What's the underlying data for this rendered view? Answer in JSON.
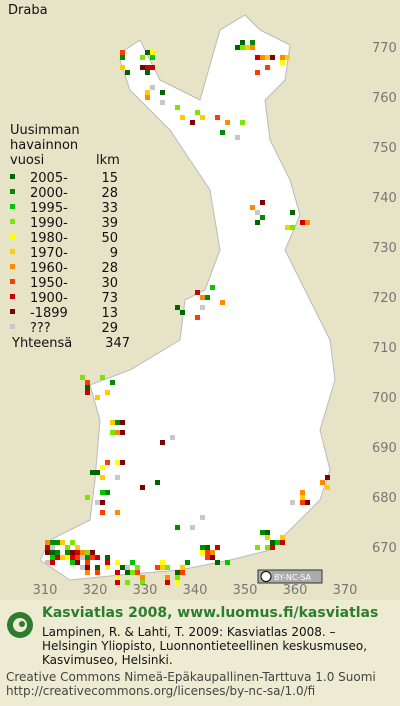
{
  "title": "Draba",
  "legend": {
    "heading": [
      "Uusimman",
      "havainnon",
      "vuosi"
    ],
    "count_heading": "lkm",
    "rows": [
      {
        "label": "2005-",
        "count": 15,
        "color": "#006400"
      },
      {
        "label": "2000-",
        "count": 28,
        "color": "#008c00"
      },
      {
        "label": "1995-",
        "count": 33,
        "color": "#00c800"
      },
      {
        "label": "1990-",
        "count": 39,
        "color": "#7ce600"
      },
      {
        "label": "1980-",
        "count": 50,
        "color": "#ffff00"
      },
      {
        "label": "1970-",
        "count": 9,
        "color": "#ffcc00"
      },
      {
        "label": "1960-",
        "count": 28,
        "color": "#ff8c00"
      },
      {
        "label": "1950-",
        "count": 30,
        "color": "#ff3c00"
      },
      {
        "label": "1900-",
        "count": 73,
        "color": "#cc0000"
      },
      {
        "label": "-1899",
        "count": 13,
        "color": "#800000"
      },
      {
        "label": "???",
        "count": 29,
        "color": "#c8c8c8"
      }
    ],
    "total_label": "Yhteensä",
    "total": 347
  },
  "axes": {
    "north": [
      770,
      760,
      750,
      740,
      730,
      720,
      710,
      700,
      690,
      680,
      670
    ],
    "east": [
      310,
      320,
      330,
      340,
      350,
      360,
      370
    ]
  },
  "badge": "BY-NC-SA",
  "footer": {
    "title": "Kasviatlas 2008, www.luomus.fi/kasviatlas",
    "citation": [
      "Lampinen, R. & Lahti, T. 2009: Kasviatlas 2008. –",
      "Helsingin Yliopisto, Luonnontieteellinen keskusmuseo,",
      "Kasvimuseo, Helsinki."
    ],
    "license": [
      "Creative Commons Nimeä-Epäkaupallinen-Tarttuva 1.0 Suomi",
      "http://creativecommons.org/licenses/by-nc-sa/1.0/fi"
    ]
  }
}
